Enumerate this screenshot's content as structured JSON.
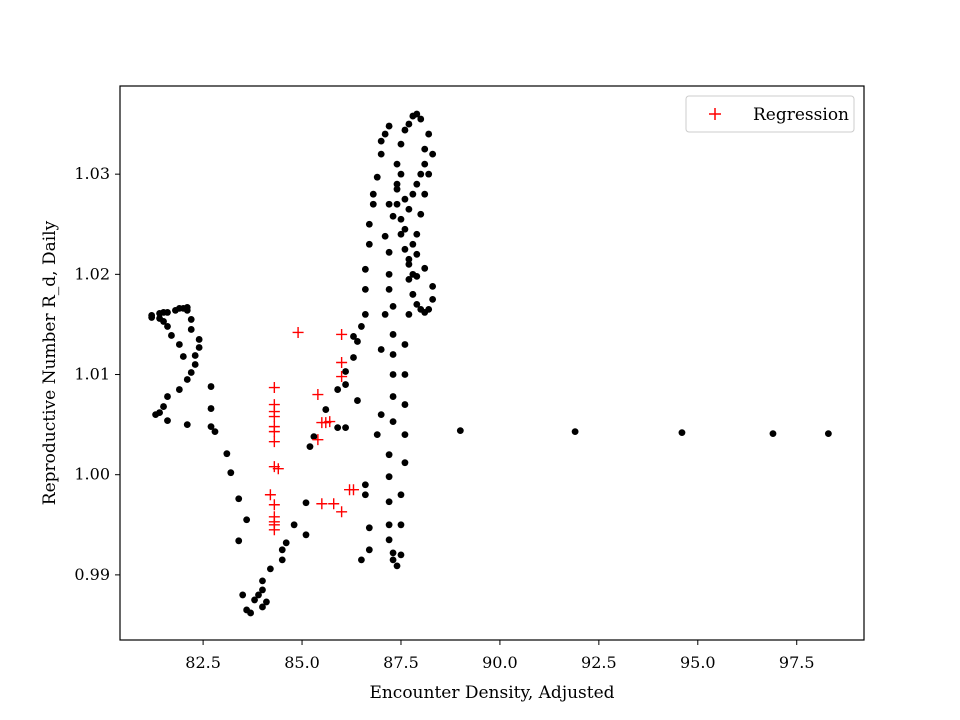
{
  "chart_data": {
    "type": "scatter",
    "title": "",
    "xlabel": "Encounter Density, Adjusted",
    "ylabel": "Reproductive Number R_d, Daily",
    "xlim": [
      80.4,
      99.2
    ],
    "ylim": [
      0.9835,
      1.0388
    ],
    "x_ticks": [
      82.5,
      85.0,
      87.5,
      90.0,
      92.5,
      95.0,
      97.5
    ],
    "x_tick_labels": [
      "82.5",
      "85.0",
      "87.5",
      "90.0",
      "92.5",
      "95.0",
      "97.5"
    ],
    "y_ticks": [
      0.99,
      1.0,
      1.01,
      1.02,
      1.03
    ],
    "y_tick_labels": [
      "0.99",
      "1.00",
      "1.01",
      "1.02",
      "1.03"
    ],
    "grid": false,
    "legend": {
      "position": "top-right",
      "entries": [
        "Regression"
      ]
    },
    "colors": {
      "observed": "#000000",
      "regression": "#ff0000"
    },
    "series": [
      {
        "marker": "dot",
        "color": "#000000",
        "points": [
          [
            81.2,
            1.0157
          ],
          [
            81.2,
            1.0159
          ],
          [
            81.4,
            1.0161
          ],
          [
            81.5,
            1.0162
          ],
          [
            81.6,
            1.0162
          ],
          [
            81.8,
            1.0164
          ],
          [
            81.9,
            1.0166
          ],
          [
            82.0,
            1.0166
          ],
          [
            82.1,
            1.0167
          ],
          [
            82.1,
            1.0164
          ],
          [
            82.2,
            1.0155
          ],
          [
            82.2,
            1.0145
          ],
          [
            82.4,
            1.0135
          ],
          [
            82.4,
            1.0127
          ],
          [
            82.3,
            1.0119
          ],
          [
            82.3,
            1.011
          ],
          [
            82.2,
            1.0102
          ],
          [
            82.1,
            1.0095
          ],
          [
            82.0,
            1.0118
          ],
          [
            81.9,
            1.013
          ],
          [
            81.7,
            1.0139
          ],
          [
            81.6,
            1.0148
          ],
          [
            81.5,
            1.0153
          ],
          [
            81.4,
            1.0156
          ],
          [
            81.9,
            1.0085
          ],
          [
            81.6,
            1.0078
          ],
          [
            81.5,
            1.0068
          ],
          [
            81.4,
            1.0062
          ],
          [
            81.3,
            1.006
          ],
          [
            81.6,
            1.0054
          ],
          [
            82.1,
            1.005
          ],
          [
            82.7,
            1.0088
          ],
          [
            82.7,
            1.0066
          ],
          [
            82.7,
            1.0048
          ],
          [
            82.8,
            1.0043
          ],
          [
            83.1,
            1.0021
          ],
          [
            83.2,
            1.0002
          ],
          [
            83.4,
            0.9976
          ],
          [
            83.4,
            0.9934
          ],
          [
            83.6,
            0.9955
          ],
          [
            83.5,
            0.988
          ],
          [
            83.6,
            0.9865
          ],
          [
            83.7,
            0.9862
          ],
          [
            83.8,
            0.9875
          ],
          [
            83.9,
            0.988
          ],
          [
            84.0,
            0.9885
          ],
          [
            84.0,
            0.9894
          ],
          [
            84.0,
            0.9868
          ],
          [
            84.1,
            0.9873
          ],
          [
            84.2,
            0.9906
          ],
          [
            84.5,
            0.9915
          ],
          [
            84.5,
            0.9925
          ],
          [
            84.6,
            0.9932
          ],
          [
            84.8,
            0.995
          ],
          [
            85.1,
            0.994
          ],
          [
            85.1,
            0.9972
          ],
          [
            85.2,
            1.0028
          ],
          [
            85.3,
            1.0038
          ],
          [
            85.6,
            1.0065
          ],
          [
            85.9,
            1.0047
          ],
          [
            85.9,
            1.0085
          ],
          [
            86.1,
            1.0047
          ],
          [
            86.1,
            1.009
          ],
          [
            86.1,
            1.0103
          ],
          [
            86.3,
            1.0138
          ],
          [
            86.3,
            1.0117
          ],
          [
            86.4,
            1.0133
          ],
          [
            86.4,
            1.0074
          ],
          [
            86.5,
            1.0148
          ],
          [
            86.5,
            0.9915
          ],
          [
            86.6,
            0.999
          ],
          [
            86.7,
            0.9925
          ],
          [
            86.7,
            0.9947
          ],
          [
            86.6,
            0.998
          ],
          [
            86.9,
            1.004
          ],
          [
            86.6,
            1.016
          ],
          [
            86.6,
            1.0185
          ],
          [
            86.6,
            1.0205
          ],
          [
            86.7,
            1.023
          ],
          [
            86.7,
            1.025
          ],
          [
            86.8,
            1.027
          ],
          [
            86.8,
            1.028
          ],
          [
            86.9,
            1.0297
          ],
          [
            87.0,
            1.032
          ],
          [
            87.0,
            1.0333
          ],
          [
            87.1,
            1.034
          ],
          [
            87.2,
            1.0348
          ],
          [
            87.1,
            1.0238
          ],
          [
            87.2,
            1.0222
          ],
          [
            87.2,
            1.02
          ],
          [
            87.2,
            1.0185
          ],
          [
            87.3,
            1.0168
          ],
          [
            87.3,
            1.014
          ],
          [
            87.3,
            1.012
          ],
          [
            87.3,
            1.01
          ],
          [
            87.3,
            1.0078
          ],
          [
            87.3,
            1.0053
          ],
          [
            87.2,
            1.002
          ],
          [
            87.2,
            0.9998
          ],
          [
            87.2,
            0.9973
          ],
          [
            87.2,
            0.995
          ],
          [
            87.2,
            0.9935
          ],
          [
            87.3,
            0.9922
          ],
          [
            87.3,
            0.9915
          ],
          [
            87.4,
            0.9909
          ],
          [
            87.5,
            0.992
          ],
          [
            87.5,
            0.995
          ],
          [
            87.5,
            0.998
          ],
          [
            87.6,
            1.0012
          ],
          [
            87.6,
            1.004
          ],
          [
            87.6,
            1.007
          ],
          [
            87.6,
            1.01
          ],
          [
            87.6,
            1.013
          ],
          [
            87.7,
            1.016
          ],
          [
            87.8,
            1.018
          ],
          [
            87.8,
            1.02
          ],
          [
            87.9,
            1.022
          ],
          [
            87.9,
            1.024
          ],
          [
            88.0,
            1.026
          ],
          [
            88.1,
            1.028
          ],
          [
            88.2,
            1.03
          ],
          [
            88.3,
            1.032
          ],
          [
            88.2,
            1.034
          ],
          [
            88.0,
            1.0355
          ],
          [
            87.9,
            1.036
          ],
          [
            87.8,
            1.0358
          ],
          [
            87.7,
            1.035
          ],
          [
            87.6,
            1.0344
          ],
          [
            87.5,
            1.033
          ],
          [
            87.4,
            1.031
          ],
          [
            87.4,
            1.029
          ],
          [
            87.4,
            1.027
          ],
          [
            87.5,
            1.0255
          ],
          [
            87.5,
            1.024
          ],
          [
            87.6,
            1.0225
          ],
          [
            87.7,
            1.021
          ],
          [
            87.7,
            1.0195
          ],
          [
            87.8,
            1.018
          ],
          [
            87.9,
            1.017
          ],
          [
            88.0,
            1.0165
          ],
          [
            88.1,
            1.0162
          ],
          [
            88.2,
            1.0165
          ],
          [
            88.3,
            1.0175
          ],
          [
            88.3,
            1.0188
          ],
          [
            88.1,
            1.0206
          ],
          [
            87.9,
            1.0198
          ],
          [
            87.7,
            1.0215
          ],
          [
            87.8,
            1.023
          ],
          [
            87.6,
            1.0245
          ],
          [
            87.7,
            1.0265
          ],
          [
            87.8,
            1.028
          ],
          [
            87.9,
            1.029
          ],
          [
            88.0,
            1.03
          ],
          [
            88.1,
            1.031
          ],
          [
            88.1,
            1.0325
          ],
          [
            87.3,
            1.0258
          ],
          [
            87.2,
            1.027
          ],
          [
            87.4,
            1.0285
          ],
          [
            87.5,
            1.03
          ],
          [
            87.6,
            1.0275
          ],
          [
            87.1,
            1.016
          ],
          [
            87.0,
            1.0125
          ],
          [
            87.0,
            1.006
          ],
          [
            89.0,
            1.0044
          ],
          [
            91.9,
            1.0043
          ],
          [
            94.6,
            1.0042
          ],
          [
            96.9,
            1.0041
          ],
          [
            98.3,
            1.0041
          ]
        ]
      },
      {
        "name": "Regression",
        "marker": "plus",
        "color": "#ff0000",
        "points": [
          [
            84.9,
            1.0142
          ],
          [
            86.0,
            1.014
          ],
          [
            86.0,
            1.0112
          ],
          [
            86.0,
            1.0098
          ],
          [
            85.4,
            1.008
          ],
          [
            85.6,
            1.0052
          ],
          [
            85.7,
            1.0053
          ],
          [
            85.5,
            1.0052
          ],
          [
            85.4,
            1.0035
          ],
          [
            84.3,
            1.0087
          ],
          [
            84.3,
            1.007
          ],
          [
            84.3,
            1.0063
          ],
          [
            84.3,
            1.0058
          ],
          [
            84.3,
            1.0048
          ],
          [
            84.3,
            1.0043
          ],
          [
            84.3,
            1.0033
          ],
          [
            84.3,
            1.0008
          ],
          [
            84.4,
            1.0006
          ],
          [
            84.2,
            0.998
          ],
          [
            84.3,
            0.997
          ],
          [
            84.3,
            0.9958
          ],
          [
            84.3,
            0.9953
          ],
          [
            84.3,
            0.995
          ],
          [
            84.3,
            0.9945
          ],
          [
            85.5,
            0.9971
          ],
          [
            85.8,
            0.9971
          ],
          [
            86.0,
            0.9963
          ],
          [
            86.2,
            0.9985
          ],
          [
            86.3,
            0.9985
          ]
        ]
      }
    ]
  }
}
